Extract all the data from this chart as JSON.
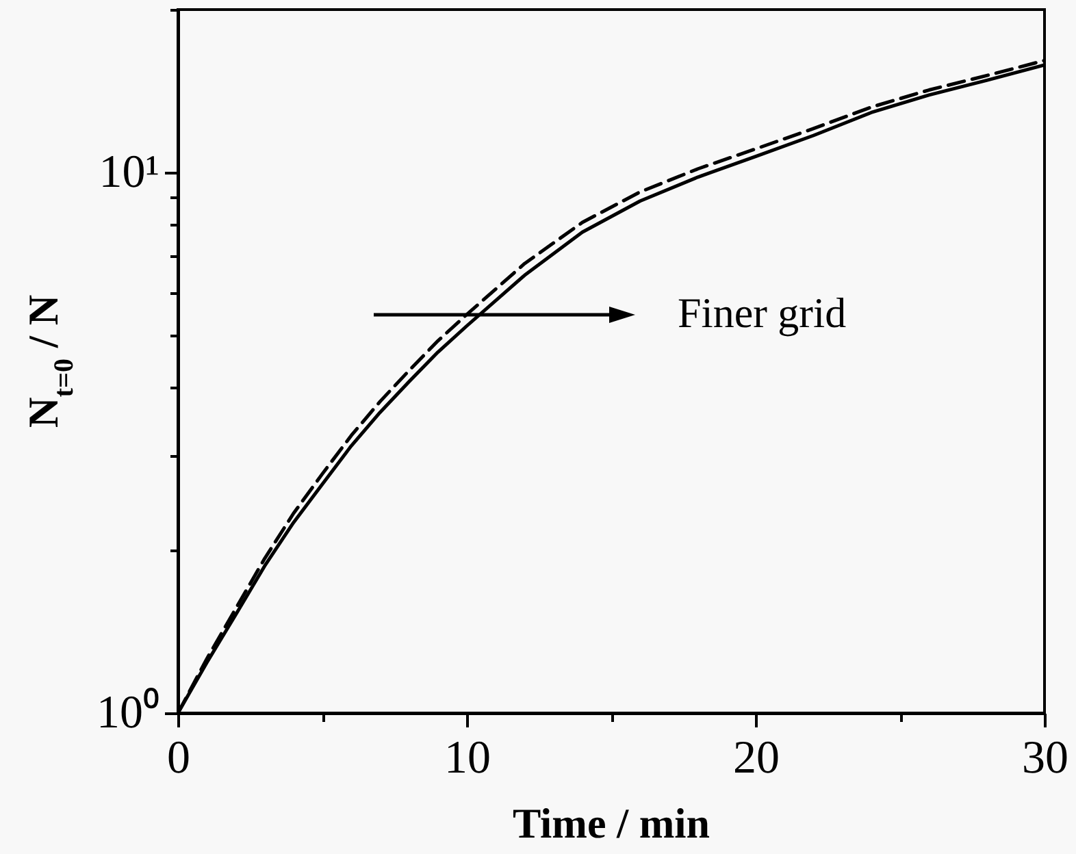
{
  "chart_data": {
    "type": "line",
    "xlabel": "Time / min",
    "ylabel": "N$_{t=0}$ / N",
    "log": "y",
    "xlim": [
      0,
      30
    ],
    "xticks": [
      0,
      {
        "value": 5,
        "label": null
      },
      10,
      {
        "value": 15,
        "label": null
      },
      20,
      {
        "value": 25,
        "label": null
      },
      30
    ],
    "ylim": [
      1,
      20
    ],
    "yticks": [
      {
        "value": 1,
        "label": "10⁰"
      },
      {
        "value": 2,
        "label": null
      },
      {
        "value": 3,
        "label": null
      },
      {
        "value": 4,
        "label": null
      },
      {
        "value": 5,
        "label": null
      },
      {
        "value": 6,
        "label": null
      },
      {
        "value": 7,
        "label": null
      },
      {
        "value": 8,
        "label": null
      },
      {
        "value": 9,
        "label": null
      },
      {
        "value": 10,
        "label": "10¹"
      },
      {
        "value": 20,
        "label": null
      }
    ],
    "x": [
      0,
      1,
      2,
      3,
      4,
      5,
      6,
      7,
      8,
      9,
      10,
      12,
      14,
      16,
      18,
      20,
      22,
      24,
      26,
      28,
      30
    ],
    "series": [
      {
        "color": "#000000",
        "line_style": "solid",
        "values": [
          1,
          1.24,
          1.52,
          1.87,
          2.25,
          2.65,
          3.12,
          3.6,
          4.1,
          4.65,
          5.2,
          6.45,
          7.75,
          8.85,
          9.8,
          10.7,
          11.7,
          12.9,
          13.9,
          14.8,
          15.8
        ]
      },
      {
        "color": "#000000",
        "line_style": "dashed",
        "values": [
          1,
          1.26,
          1.56,
          1.93,
          2.34,
          2.77,
          3.26,
          3.77,
          4.3,
          4.88,
          5.46,
          6.78,
          8.08,
          9.2,
          10.15,
          11.05,
          12.05,
          13.2,
          14.2,
          15.1,
          16.1
        ]
      }
    ],
    "annotations": [
      "Finer grid"
    ]
  }
}
